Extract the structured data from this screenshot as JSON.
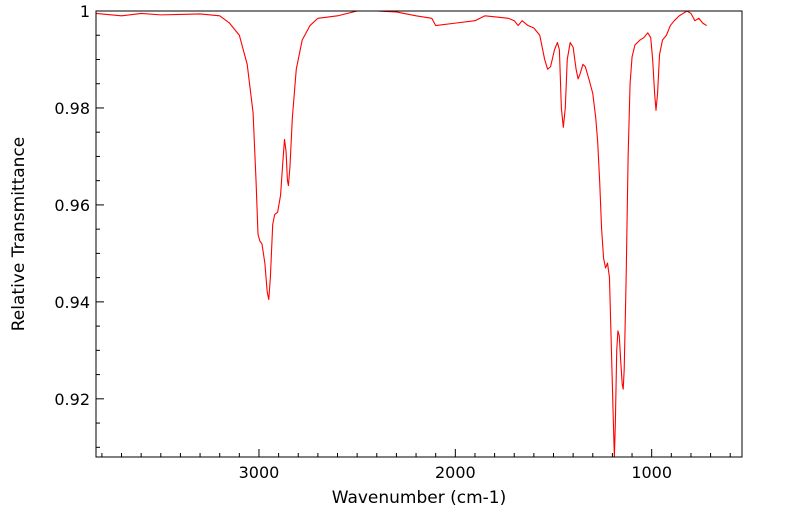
{
  "chart_data": {
    "type": "line",
    "title": "",
    "xlabel": "Wavenumber (cm-1)",
    "ylabel": "Relative Transmittance",
    "xlim": [
      3830,
      540
    ],
    "ylim": [
      0.908,
      1.0
    ],
    "x_reversed": true,
    "grid": false,
    "x_ticks": [
      {
        "value": 3000,
        "label": "3000"
      },
      {
        "value": 2000,
        "label": "2000"
      },
      {
        "value": 1000,
        "label": "1000"
      }
    ],
    "y_ticks": [
      {
        "value": 0.92,
        "label": "0.92"
      },
      {
        "value": 0.94,
        "label": "0.94"
      },
      {
        "value": 0.96,
        "label": "0.96"
      },
      {
        "value": 0.98,
        "label": "0.98"
      },
      {
        "value": 1.0,
        "label": "1"
      }
    ],
    "series": [
      {
        "color": "#ff0000",
        "points": [
          [
            3830,
            0.9995
          ],
          [
            3700,
            0.999
          ],
          [
            3600,
            0.9995
          ],
          [
            3500,
            0.9992
          ],
          [
            3400,
            0.9993
          ],
          [
            3300,
            0.9994
          ],
          [
            3200,
            0.999
          ],
          [
            3150,
            0.9975
          ],
          [
            3100,
            0.995
          ],
          [
            3060,
            0.989
          ],
          [
            3030,
            0.979
          ],
          [
            3015,
            0.965
          ],
          [
            3005,
            0.954
          ],
          [
            2995,
            0.9525
          ],
          [
            2985,
            0.952
          ],
          [
            2970,
            0.948
          ],
          [
            2958,
            0.942
          ],
          [
            2950,
            0.9405
          ],
          [
            2942,
            0.945
          ],
          [
            2930,
            0.956
          ],
          [
            2920,
            0.958
          ],
          [
            2905,
            0.9585
          ],
          [
            2890,
            0.962
          ],
          [
            2880,
            0.968
          ],
          [
            2870,
            0.9735
          ],
          [
            2862,
            0.971
          ],
          [
            2855,
            0.965
          ],
          [
            2850,
            0.964
          ],
          [
            2842,
            0.968
          ],
          [
            2830,
            0.978
          ],
          [
            2810,
            0.988
          ],
          [
            2780,
            0.994
          ],
          [
            2740,
            0.997
          ],
          [
            2700,
            0.9985
          ],
          [
            2600,
            0.999
          ],
          [
            2500,
            1.0
          ],
          [
            2400,
            1.0
          ],
          [
            2300,
            0.9998
          ],
          [
            2200,
            0.999
          ],
          [
            2120,
            0.9985
          ],
          [
            2100,
            0.997
          ],
          [
            2000,
            0.9975
          ],
          [
            1900,
            0.998
          ],
          [
            1850,
            0.999
          ],
          [
            1800,
            0.9988
          ],
          [
            1730,
            0.9985
          ],
          [
            1700,
            0.998
          ],
          [
            1680,
            0.997
          ],
          [
            1660,
            0.998
          ],
          [
            1630,
            0.997
          ],
          [
            1600,
            0.9965
          ],
          [
            1570,
            0.995
          ],
          [
            1545,
            0.99
          ],
          [
            1530,
            0.988
          ],
          [
            1515,
            0.9885
          ],
          [
            1495,
            0.992
          ],
          [
            1480,
            0.9935
          ],
          [
            1470,
            0.992
          ],
          [
            1460,
            0.98
          ],
          [
            1450,
            0.976
          ],
          [
            1440,
            0.98
          ],
          [
            1430,
            0.99
          ],
          [
            1415,
            0.9935
          ],
          [
            1400,
            0.9925
          ],
          [
            1385,
            0.988
          ],
          [
            1375,
            0.986
          ],
          [
            1365,
            0.987
          ],
          [
            1350,
            0.989
          ],
          [
            1338,
            0.9885
          ],
          [
            1320,
            0.986
          ],
          [
            1300,
            0.983
          ],
          [
            1285,
            0.978
          ],
          [
            1275,
            0.973
          ],
          [
            1265,
            0.965
          ],
          [
            1255,
            0.955
          ],
          [
            1245,
            0.949
          ],
          [
            1235,
            0.947
          ],
          [
            1225,
            0.948
          ],
          [
            1215,
            0.945
          ],
          [
            1205,
            0.93
          ],
          [
            1195,
            0.915
          ],
          [
            1190,
            0.908
          ],
          [
            1185,
            0.915
          ],
          [
            1178,
            0.93
          ],
          [
            1172,
            0.934
          ],
          [
            1165,
            0.933
          ],
          [
            1158,
            0.928
          ],
          [
            1150,
            0.923
          ],
          [
            1145,
            0.922
          ],
          [
            1140,
            0.926
          ],
          [
            1130,
            0.945
          ],
          [
            1120,
            0.97
          ],
          [
            1110,
            0.985
          ],
          [
            1100,
            0.9905
          ],
          [
            1085,
            0.993
          ],
          [
            1060,
            0.994
          ],
          [
            1040,
            0.9945
          ],
          [
            1020,
            0.9955
          ],
          [
            1005,
            0.9945
          ],
          [
            995,
            0.99
          ],
          [
            985,
            0.983
          ],
          [
            978,
            0.9795
          ],
          [
            970,
            0.983
          ],
          [
            960,
            0.991
          ],
          [
            945,
            0.994
          ],
          [
            925,
            0.995
          ],
          [
            905,
            0.997
          ],
          [
            885,
            0.998
          ],
          [
            860,
            0.999
          ],
          [
            840,
            0.9995
          ],
          [
            820,
            1.0
          ],
          [
            800,
            0.9995
          ],
          [
            780,
            0.998
          ],
          [
            760,
            0.9985
          ],
          [
            740,
            0.9975
          ],
          [
            720,
            0.997
          ]
        ]
      }
    ]
  }
}
